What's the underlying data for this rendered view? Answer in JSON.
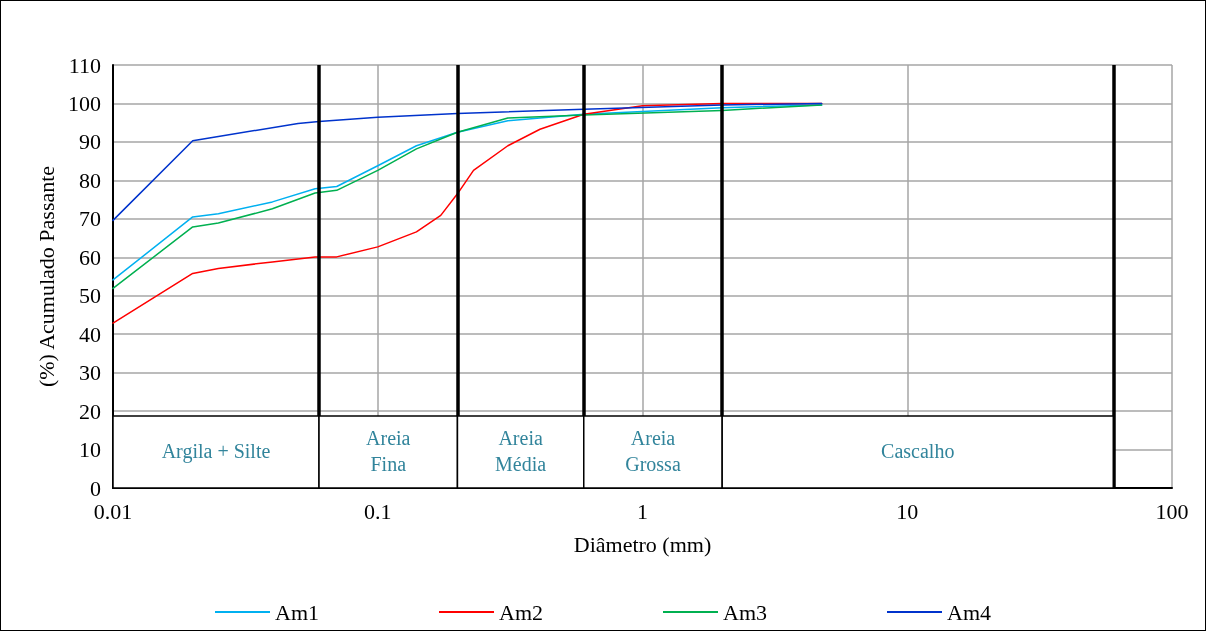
{
  "chart_data": {
    "type": "line",
    "xlabel": "Diâmetro (mm)",
    "ylabel": "(%) Acumulado Passante",
    "log": "x",
    "xlim": [
      0.01,
      100
    ],
    "xticks": [
      0.01,
      0.1,
      1,
      10,
      100
    ],
    "ylim": [
      0,
      110
    ],
    "yticks": [
      0,
      10,
      20,
      30,
      40,
      50,
      60,
      70,
      80,
      90,
      100,
      110
    ],
    "grid": true,
    "legend": "bottom",
    "marker": "none",
    "line_style": "solid",
    "series": [
      {
        "name": "Am1",
        "color": "#00b0f0",
        "x": [
          0.01,
          0.02,
          0.025,
          0.04,
          0.058,
          0.07,
          0.1,
          0.14,
          0.2,
          0.31,
          0.6,
          2,
          4.75
        ],
        "values": [
          54.1,
          70.5,
          71.3,
          74.4,
          77.8,
          78.4,
          83.8,
          89,
          92.5,
          95.5,
          97.2,
          98.9,
          99.6
        ]
      },
      {
        "name": "Am2",
        "color": "#ff0000",
        "x": [
          0.01,
          0.02,
          0.025,
          0.04,
          0.058,
          0.07,
          0.1,
          0.14,
          0.173,
          0.2,
          0.23,
          0.31,
          0.41,
          0.6,
          1,
          2,
          4.75
        ],
        "values": [
          42.9,
          55.8,
          57.1,
          58.8,
          60.1,
          60.1,
          62.7,
          66.6,
          70.9,
          76.5,
          82.6,
          89,
          93.3,
          97.2,
          99.4,
          100,
          100
        ]
      },
      {
        "name": "Am3",
        "color": "#00b050",
        "x": [
          0.01,
          0.02,
          0.025,
          0.04,
          0.058,
          0.07,
          0.1,
          0.14,
          0.2,
          0.31,
          0.6,
          2,
          4.75
        ],
        "values": [
          51.9,
          67.9,
          68.9,
          72.6,
          76.7,
          77.4,
          82.6,
          88.2,
          92.5,
          96.2,
          97,
          98.2,
          99.6
        ]
      },
      {
        "name": "Am4",
        "color": "#0033cc",
        "x": [
          0.01,
          0.02,
          0.025,
          0.05,
          0.06,
          0.1,
          0.2,
          0.6,
          2,
          4.75
        ],
        "values": [
          69.6,
          90.3,
          91.4,
          94.8,
          95.3,
          96.4,
          97.4,
          98.5,
          99.6,
          100
        ]
      }
    ],
    "ref_lines": [
      {
        "axis": "x",
        "value": 0.06,
        "color": "#000000"
      },
      {
        "axis": "x",
        "value": 0.2,
        "color": "#000000"
      },
      {
        "axis": "x",
        "value": 0.6,
        "color": "#000000"
      },
      {
        "axis": "x",
        "value": 2,
        "color": "#000000"
      },
      {
        "axis": "x",
        "value": 60,
        "color": "#000000"
      }
    ],
    "bands": [
      {
        "axis": "x",
        "from": 0.01,
        "to": 0.06,
        "label": "Argila + Silte",
        "color": "#ffffff"
      },
      {
        "axis": "x",
        "from": 0.06,
        "to": 0.2,
        "label": "Areia\nFina",
        "color": "#ffffff"
      },
      {
        "axis": "x",
        "from": 0.2,
        "to": 0.6,
        "label": "Areia\nMédia",
        "color": "#ffffff"
      },
      {
        "axis": "x",
        "from": 0.6,
        "to": 2,
        "label": "Areia\nGrossa",
        "color": "#ffffff"
      },
      {
        "axis": "x",
        "from": 2,
        "to": 60,
        "label": "Cascalho",
        "color": "#ffffff"
      }
    ]
  }
}
